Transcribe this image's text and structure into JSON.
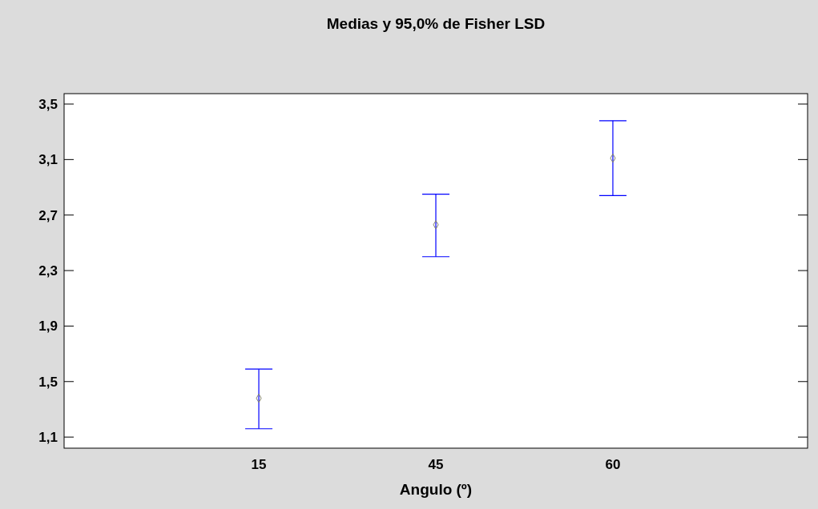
{
  "chart_data": {
    "type": "scatter",
    "title": "Medias y 95,0% de Fisher LSD",
    "xlabel": "Angulo (º)",
    "categories": [
      "15",
      "45",
      "60"
    ],
    "series": [
      {
        "color": "#808070",
        "values": [
          1.38,
          2.63,
          3.11
        ],
        "errors": [
          [
            1.16,
            1.59
          ],
          [
            2.4,
            2.85
          ],
          [
            2.84,
            3.38
          ]
        ]
      }
    ],
    "ylim": [
      1.02,
      3.575
    ],
    "yticks": [
      {
        "value": 1.1,
        "label": "1,1"
      },
      {
        "value": 1.5,
        "label": "1,5"
      },
      {
        "value": 1.9,
        "label": "1,9"
      },
      {
        "value": 2.3,
        "label": "2,3"
      },
      {
        "value": 2.7,
        "label": "2,7"
      },
      {
        "value": 3.1,
        "label": "3,1"
      },
      {
        "value": 3.5,
        "label": "3,5"
      }
    ],
    "grid": false,
    "marker": "diamond"
  }
}
